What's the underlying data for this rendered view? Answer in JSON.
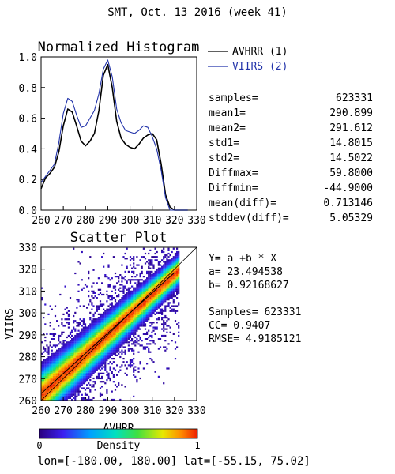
{
  "header": {
    "title": "SMT,  Oct. 13 2016 (week 41)"
  },
  "colors": {
    "series1": "#000000",
    "series2": "#2233aa",
    "fit_line": "#000000"
  },
  "chart_data": [
    {
      "type": "line",
      "title": "Normalized Histogram",
      "xlim": [
        260,
        330
      ],
      "ylim": [
        0.0,
        1.0
      ],
      "x_ticks": [
        "260",
        "270",
        "280",
        "290",
        "300",
        "310",
        "320",
        "330"
      ],
      "y_ticks": [
        "0.0",
        "0.2",
        "0.4",
        "0.6",
        "0.8",
        "1.0"
      ],
      "legend_position": "top-right",
      "series": [
        {
          "name": "AVHRR (1)",
          "color": "#000000",
          "x": [
            260,
            262,
            264,
            266,
            268,
            270,
            272,
            274,
            276,
            278,
            280,
            282,
            284,
            286,
            288,
            290,
            292,
            294,
            296,
            298,
            300,
            302,
            304,
            306,
            308,
            310,
            312,
            314,
            316,
            318,
            320,
            322,
            324,
            326
          ],
          "y": [
            0.14,
            0.21,
            0.24,
            0.28,
            0.38,
            0.55,
            0.66,
            0.64,
            0.55,
            0.45,
            0.42,
            0.45,
            0.5,
            0.65,
            0.88,
            0.95,
            0.8,
            0.58,
            0.47,
            0.43,
            0.41,
            0.4,
            0.43,
            0.47,
            0.49,
            0.5,
            0.46,
            0.3,
            0.1,
            0.02,
            0.0,
            0.0,
            0.0,
            0.0
          ]
        },
        {
          "name": "VIIRS (2)",
          "color": "#2233aa",
          "x": [
            260,
            262,
            264,
            266,
            268,
            270,
            272,
            274,
            276,
            278,
            280,
            282,
            284,
            286,
            288,
            290,
            292,
            294,
            296,
            298,
            300,
            302,
            304,
            306,
            308,
            310,
            312,
            314,
            316,
            318,
            320,
            322,
            324,
            326
          ],
          "y": [
            0.18,
            0.22,
            0.26,
            0.3,
            0.44,
            0.63,
            0.73,
            0.71,
            0.62,
            0.54,
            0.55,
            0.6,
            0.65,
            0.76,
            0.92,
            0.98,
            0.87,
            0.66,
            0.57,
            0.52,
            0.51,
            0.5,
            0.52,
            0.55,
            0.54,
            0.48,
            0.4,
            0.26,
            0.08,
            0.0,
            0.0,
            0.0,
            0.0,
            0.0
          ]
        }
      ]
    },
    {
      "type": "scatter",
      "title": "Scatter Plot",
      "xlabel": "AVHRR",
      "ylabel": "VIIRS",
      "xlim": [
        260,
        330
      ],
      "ylim": [
        260,
        330
      ],
      "x_ticks": [
        "260",
        "270",
        "280",
        "290",
        "300",
        "310",
        "320",
        "330"
      ],
      "y_ticks": [
        "260",
        "270",
        "280",
        "290",
        "300",
        "310",
        "320",
        "330"
      ],
      "fit": {
        "a": 23.494538,
        "b": 0.92168627
      },
      "colorbar": {
        "label": "Density",
        "min": "0",
        "max": "1"
      }
    }
  ],
  "stats": [
    {
      "label": "samples=",
      "value": "623331"
    },
    {
      "label": "mean1=",
      "value": "290.899"
    },
    {
      "label": "mean2=",
      "value": "291.612"
    },
    {
      "label": "std1=",
      "value": "14.8015"
    },
    {
      "label": "std2=",
      "value": "14.5022"
    },
    {
      "label": "Diffmax=",
      "value": "59.8000"
    },
    {
      "label": "Diffmin=",
      "value": "-44.9000"
    },
    {
      "label": "mean(diff)=",
      "value": "0.713146"
    },
    {
      "label": "stddev(diff)=",
      "value": "5.05329"
    }
  ],
  "fit_text": [
    "Y= a +b * X",
    "a= 23.494538",
    "b= 0.92168627",
    "",
    "Samples= 623331",
    "CC=  0.9407",
    "RMSE= 4.9185121"
  ],
  "footer": {
    "text": "lon=[-180.00, 180.00] lat=[-55.15, 75.02]"
  }
}
